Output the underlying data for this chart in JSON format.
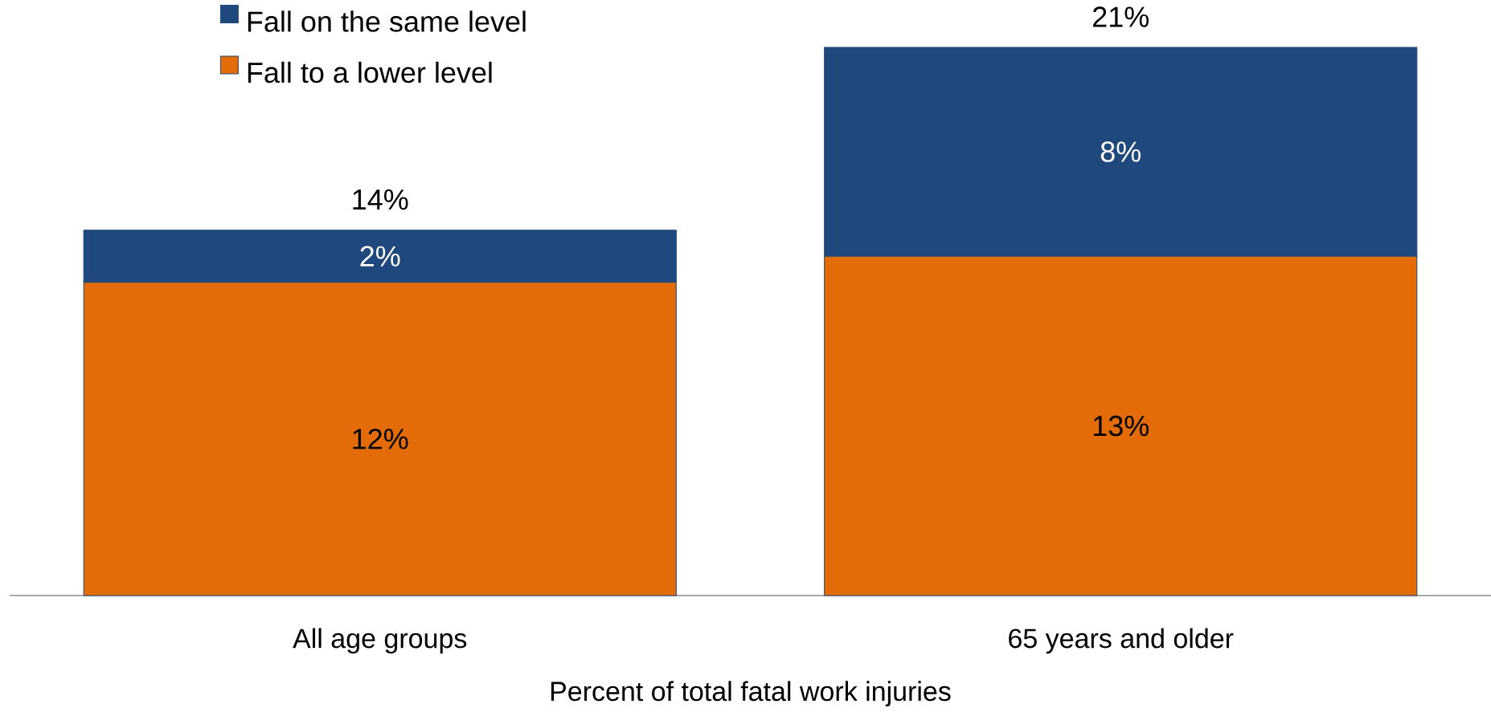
{
  "chart_data": {
    "type": "bar",
    "stacked": true,
    "categories": [
      "All age groups",
      "65 years and older"
    ],
    "series": [
      {
        "name": "Fall to a lower level",
        "color": "#E36C09",
        "values": [
          12,
          13
        ],
        "value_labels": [
          "12%",
          "13%"
        ]
      },
      {
        "name": "Fall on the same level",
        "color": "#1F497D",
        "values": [
          2,
          8
        ],
        "value_labels": [
          "2%",
          "8%"
        ]
      }
    ],
    "totals": [
      "14%",
      "21%"
    ],
    "xlabel": "Percent of total fatal work injuries",
    "legend": "top left"
  }
}
